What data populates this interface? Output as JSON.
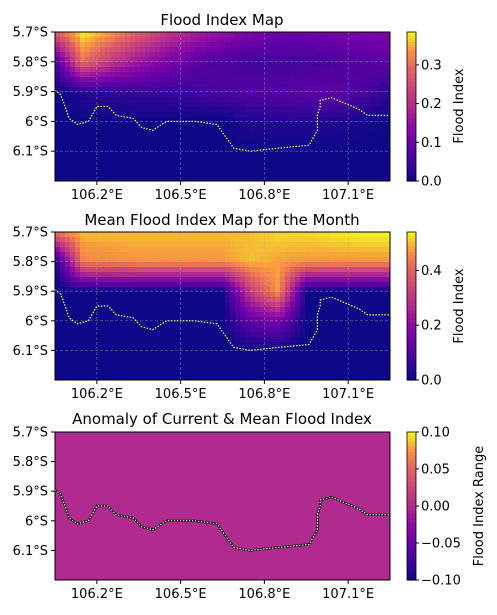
{
  "chart_data": [
    {
      "type": "heatmap",
      "title": "Flood Index Map",
      "colorbar_label": "Flood Index",
      "colormap": "plasma",
      "vmin": 0.0,
      "vmax": 0.385,
      "colorbar_ticks": [
        "0.0",
        "0.1",
        "0.2",
        "0.3"
      ],
      "colorbar_tick_values": [
        0.0,
        0.1,
        0.2,
        0.3
      ],
      "x_ticks": [
        "106.2°E",
        "106.5°E",
        "106.8°E",
        "107.1°E"
      ],
      "x_tick_values": [
        106.2,
        106.5,
        106.8,
        107.1
      ],
      "y_ticks": [
        "5.7°S",
        "5.8°S",
        "5.9°S",
        "6°S",
        "6.1°S"
      ],
      "y_tick_values": [
        -5.7,
        -5.8,
        -5.9,
        -6.0,
        -6.1
      ],
      "xlim": [
        106.05,
        107.25
      ],
      "ylim": [
        -6.2,
        -5.7
      ],
      "grid": true,
      "lons": [
        106.05,
        106.15,
        106.25,
        106.35,
        106.45,
        106.55,
        106.65,
        106.75,
        106.85,
        106.95,
        107.05,
        107.15,
        107.25
      ],
      "lats": [
        -5.7,
        -5.8,
        -5.9,
        -6.0,
        -6.1,
        -6.2
      ],
      "values": [
        [
          0.28,
          0.385,
          0.34,
          0.28,
          0.22,
          0.18,
          0.15,
          0.12,
          0.1,
          0.1,
          0.11,
          0.12,
          0.12
        ],
        [
          0.05,
          0.3,
          0.22,
          0.16,
          0.12,
          0.08,
          0.06,
          0.05,
          0.05,
          0.05,
          0.06,
          0.07,
          0.08
        ],
        [
          0.0,
          0.02,
          0.03,
          0.04,
          0.04,
          0.05,
          0.06,
          0.07,
          0.07,
          0.08,
          0.08,
          0.06,
          0.03
        ],
        [
          0.0,
          0.0,
          0.0,
          0.0,
          0.0,
          0.0,
          0.0,
          0.02,
          0.02,
          0.02,
          0.02,
          0.01,
          0.0
        ],
        [
          0.0,
          0.0,
          0.0,
          0.0,
          0.0,
          0.0,
          0.0,
          0.0,
          0.0,
          0.0,
          0.0,
          0.0,
          0.0
        ],
        [
          0.0,
          0.0,
          0.0,
          0.0,
          0.0,
          0.0,
          0.0,
          0.0,
          0.0,
          0.0,
          0.0,
          0.0,
          0.0
        ]
      ],
      "coastline": [
        [
          106.05,
          -5.895
        ],
        [
          106.07,
          -5.91
        ],
        [
          106.09,
          -5.96
        ],
        [
          106.1,
          -5.99
        ],
        [
          106.13,
          -6.01
        ],
        [
          106.17,
          -6.0
        ],
        [
          106.2,
          -5.95
        ],
        [
          106.24,
          -5.95
        ],
        [
          106.27,
          -5.98
        ],
        [
          106.33,
          -5.99
        ],
        [
          106.36,
          -6.02
        ],
        [
          106.4,
          -6.03
        ],
        [
          106.45,
          -6.0
        ],
        [
          106.55,
          -6.0
        ],
        [
          106.63,
          -6.01
        ],
        [
          106.66,
          -6.05
        ],
        [
          106.69,
          -6.09
        ],
        [
          106.75,
          -6.1
        ],
        [
          106.85,
          -6.09
        ],
        [
          106.96,
          -6.08
        ],
        [
          106.99,
          -6.03
        ],
        [
          106.99,
          -5.98
        ],
        [
          107.0,
          -5.95
        ],
        [
          107.0,
          -5.93
        ],
        [
          107.04,
          -5.92
        ],
        [
          107.09,
          -5.94
        ],
        [
          107.14,
          -5.96
        ],
        [
          107.17,
          -5.98
        ],
        [
          107.25,
          -5.98
        ]
      ],
      "coastline_color": "#ffff66"
    },
    {
      "type": "heatmap",
      "title": "Mean Flood Index Map for the Month",
      "colorbar_label": "Flood Index",
      "colormap": "plasma",
      "vmin": 0.0,
      "vmax": 0.54,
      "colorbar_ticks": [
        "0.0",
        "0.2",
        "0.4"
      ],
      "colorbar_tick_values": [
        0.0,
        0.2,
        0.4
      ],
      "x_ticks": [
        "106.2°E",
        "106.5°E",
        "106.8°E",
        "107.1°E"
      ],
      "x_tick_values": [
        106.2,
        106.5,
        106.8,
        107.1
      ],
      "y_ticks": [
        "5.7°S",
        "5.8°S",
        "5.9°S",
        "6°S",
        "6.1°S"
      ],
      "y_tick_values": [
        -5.7,
        -5.8,
        -5.9,
        -6.0,
        -6.1
      ],
      "xlim": [
        106.05,
        107.25
      ],
      "ylim": [
        -6.2,
        -5.7
      ],
      "grid": true,
      "lons": [
        106.05,
        106.15,
        106.25,
        106.35,
        106.45,
        106.55,
        106.65,
        106.75,
        106.85,
        106.95,
        107.05,
        107.15,
        107.25
      ],
      "lats": [
        -5.7,
        -5.8,
        -5.9,
        -6.0,
        -6.1,
        -6.2
      ],
      "values": [
        [
          0.44,
          0.5,
          0.5,
          0.5,
          0.5,
          0.5,
          0.5,
          0.5,
          0.52,
          0.52,
          0.53,
          0.54,
          0.54
        ],
        [
          0.0,
          0.45,
          0.46,
          0.47,
          0.47,
          0.47,
          0.47,
          0.5,
          0.48,
          0.47,
          0.47,
          0.47,
          0.47
        ],
        [
          0.0,
          0.0,
          0.0,
          0.0,
          0.0,
          0.0,
          0.0,
          0.32,
          0.48,
          0.0,
          0.0,
          0.0,
          0.0
        ],
        [
          0.0,
          0.0,
          0.0,
          0.0,
          0.0,
          0.0,
          0.0,
          0.12,
          0.16,
          0.0,
          0.0,
          0.0,
          0.0
        ],
        [
          0.0,
          0.0,
          0.0,
          0.0,
          0.0,
          0.0,
          0.0,
          0.0,
          0.0,
          0.0,
          0.0,
          0.0,
          0.0
        ],
        [
          0.0,
          0.0,
          0.0,
          0.0,
          0.0,
          0.0,
          0.0,
          0.0,
          0.0,
          0.0,
          0.0,
          0.0,
          0.0
        ]
      ],
      "coastline": [
        [
          106.05,
          -5.895
        ],
        [
          106.07,
          -5.91
        ],
        [
          106.09,
          -5.96
        ],
        [
          106.1,
          -5.99
        ],
        [
          106.13,
          -6.01
        ],
        [
          106.17,
          -6.0
        ],
        [
          106.2,
          -5.95
        ],
        [
          106.24,
          -5.95
        ],
        [
          106.27,
          -5.98
        ],
        [
          106.33,
          -5.99
        ],
        [
          106.36,
          -6.02
        ],
        [
          106.4,
          -6.03
        ],
        [
          106.45,
          -6.0
        ],
        [
          106.55,
          -6.0
        ],
        [
          106.63,
          -6.01
        ],
        [
          106.66,
          -6.05
        ],
        [
          106.69,
          -6.09
        ],
        [
          106.75,
          -6.1
        ],
        [
          106.85,
          -6.09
        ],
        [
          106.96,
          -6.08
        ],
        [
          106.99,
          -6.03
        ],
        [
          106.99,
          -5.98
        ],
        [
          107.0,
          -5.95
        ],
        [
          107.0,
          -5.93
        ],
        [
          107.04,
          -5.92
        ],
        [
          107.09,
          -5.94
        ],
        [
          107.14,
          -5.96
        ],
        [
          107.17,
          -5.98
        ],
        [
          107.25,
          -5.98
        ]
      ],
      "coastline_color": "#ffff66"
    },
    {
      "type": "heatmap",
      "title": "Anomaly of Current & Mean Flood Index",
      "colorbar_label": "Flood Index Range",
      "colormap": "plasma",
      "vmin": -0.1,
      "vmax": 0.1,
      "colorbar_ticks": [
        "0.10",
        "0.05",
        "0.00",
        "−0.05",
        "−0.10"
      ],
      "colorbar_tick_values": [
        0.1,
        0.05,
        0.0,
        -0.05,
        -0.1
      ],
      "x_ticks": [
        "106.2°E",
        "106.5°E",
        "106.8°E",
        "107.1°E"
      ],
      "x_tick_values": [
        106.2,
        106.5,
        106.8,
        107.1
      ],
      "y_ticks": [
        "5.7°S",
        "5.8°S",
        "5.9°S",
        "6°S",
        "6.1°S"
      ],
      "y_tick_values": [
        -5.7,
        -5.8,
        -5.9,
        -6.0,
        -6.1
      ],
      "xlim": [
        106.05,
        107.25
      ],
      "ylim": [
        -6.2,
        -5.7
      ],
      "grid": false,
      "uniform_value": 0.0,
      "coastline": [
        [
          106.05,
          -5.895
        ],
        [
          106.07,
          -5.91
        ],
        [
          106.09,
          -5.96
        ],
        [
          106.1,
          -5.99
        ],
        [
          106.13,
          -6.01
        ],
        [
          106.17,
          -6.0
        ],
        [
          106.2,
          -5.95
        ],
        [
          106.24,
          -5.95
        ],
        [
          106.27,
          -5.98
        ],
        [
          106.33,
          -5.99
        ],
        [
          106.36,
          -6.02
        ],
        [
          106.4,
          -6.03
        ],
        [
          106.45,
          -6.0
        ],
        [
          106.55,
          -6.0
        ],
        [
          106.63,
          -6.01
        ],
        [
          106.66,
          -6.05
        ],
        [
          106.69,
          -6.09
        ],
        [
          106.75,
          -6.1
        ],
        [
          106.85,
          -6.09
        ],
        [
          106.96,
          -6.08
        ],
        [
          106.99,
          -6.03
        ],
        [
          106.99,
          -5.98
        ],
        [
          107.0,
          -5.95
        ],
        [
          107.0,
          -5.93
        ],
        [
          107.04,
          -5.92
        ],
        [
          107.09,
          -5.94
        ],
        [
          107.14,
          -5.96
        ],
        [
          107.17,
          -5.98
        ],
        [
          107.25,
          -5.98
        ]
      ],
      "coastline_color": "#ffffff"
    }
  ]
}
